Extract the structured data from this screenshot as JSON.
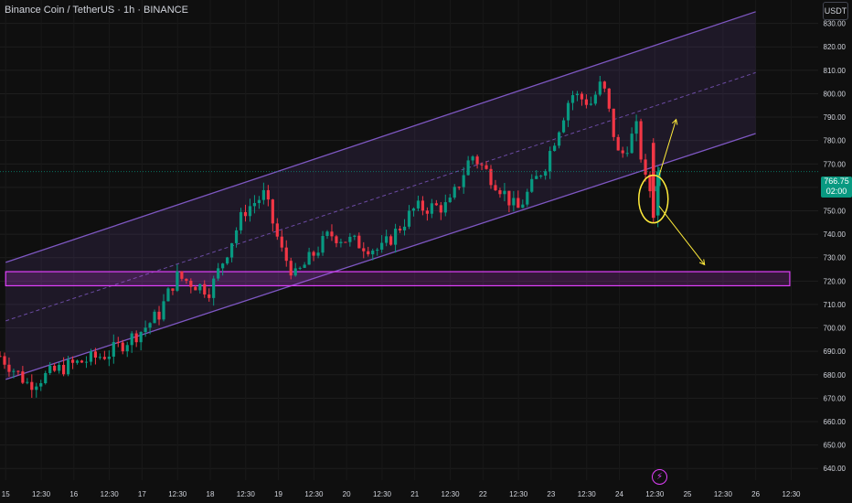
{
  "header": {
    "title": "Binance Coin / TetherUS · 1h · BINANCE",
    "currency": "USDT"
  },
  "last_price": {
    "value": "766.75",
    "countdown": "02:00",
    "color": "#089981"
  },
  "colors": {
    "background": "#0f0f0f",
    "up": "#089981",
    "down": "#f23645",
    "channel": "#7e57c2",
    "zone": "#e040fb",
    "annotation": "#ffeb3b",
    "axis_text": "#d1d4dc"
  },
  "indicator_icon": "lightning-icon",
  "chart_data": {
    "type": "candlestick",
    "symbol": "BNBUSDT",
    "timeframe": "1h",
    "ylim": [
      635,
      840
    ],
    "y_ticks": [
      640,
      650,
      660,
      670,
      680,
      690,
      700,
      710,
      720,
      730,
      740,
      750,
      760,
      770,
      780,
      790,
      800,
      810,
      820,
      830
    ],
    "y_tick_labels": [
      "640.00",
      "650.00",
      "660.00",
      "670.00",
      "680.00",
      "690.00",
      "700.00",
      "710.00",
      "720.00",
      "730.00",
      "740.00",
      "750.00",
      "760.00",
      "770.00",
      "780.00",
      "790.00",
      "800.00",
      "810.00",
      "820.00",
      "830.00"
    ],
    "x_range": [
      "2025-06-14 22:00",
      "2025-06-26 22:00"
    ],
    "x_ticks": [
      "15",
      "12:30",
      "16",
      "12:30",
      "17",
      "12:30",
      "18",
      "12:30",
      "19",
      "12:30",
      "20",
      "12:30",
      "21",
      "12:30",
      "22",
      "12:30",
      "23",
      "12:30",
      "24",
      "12:30",
      "25",
      "12:30",
      "26",
      "12:30"
    ],
    "x_tick_times": [
      "2025-06-15 00:00",
      "2025-06-15 12:30",
      "2025-06-16 00:00",
      "2025-06-16 12:30",
      "2025-06-17 00:00",
      "2025-06-17 12:30",
      "2025-06-18 00:00",
      "2025-06-18 12:30",
      "2025-06-19 00:00",
      "2025-06-19 12:30",
      "2025-06-20 00:00",
      "2025-06-20 12:30",
      "2025-06-21 00:00",
      "2025-06-21 12:30",
      "2025-06-22 00:00",
      "2025-06-22 12:30",
      "2025-06-23 00:00",
      "2025-06-23 12:30",
      "2025-06-24 00:00",
      "2025-06-24 12:30",
      "2025-06-25 00:00",
      "2025-06-25 12:30",
      "2025-06-26 00:00",
      "2025-06-26 12:30"
    ],
    "last_price": 766.75,
    "price_path": [
      [
        "2025-06-14 22:00",
        688
      ],
      [
        "2025-06-15 08:00",
        676
      ],
      [
        "2025-06-15 20:00",
        683
      ],
      [
        "2025-06-16 12:00",
        689
      ],
      [
        "2025-06-17 00:00",
        699
      ],
      [
        "2025-06-17 06:00",
        706
      ],
      [
        "2025-06-17 12:00",
        722
      ],
      [
        "2025-06-18 00:00",
        716
      ],
      [
        "2025-06-18 12:00",
        750
      ],
      [
        "2025-06-18 19:00",
        757
      ],
      [
        "2025-06-19 01:00",
        733
      ],
      [
        "2025-06-19 06:00",
        722
      ],
      [
        "2025-06-19 18:00",
        740
      ],
      [
        "2025-06-20 12:00",
        733
      ],
      [
        "2025-06-21 00:00",
        751
      ],
      [
        "2025-06-21 12:00",
        752
      ],
      [
        "2025-06-21 20:00",
        774
      ],
      [
        "2025-06-22 06:00",
        760
      ],
      [
        "2025-06-22 12:00",
        750
      ],
      [
        "2025-06-22 22:00",
        770
      ],
      [
        "2025-06-23 07:00",
        800
      ],
      [
        "2025-06-23 14:00",
        796
      ],
      [
        "2025-06-23 18:00",
        805
      ],
      [
        "2025-06-24 00:00",
        772
      ],
      [
        "2025-06-24 06:00",
        785
      ],
      [
        "2025-06-24 10:00",
        757
      ],
      [
        "2025-06-24 14:00",
        766.75
      ]
    ],
    "channel": {
      "lower": [
        [
          "2025-06-15 00:00",
          678
        ],
        [
          "2025-06-26 00:00",
          783
        ]
      ],
      "upper": [
        [
          "2025-06-15 00:00",
          728
        ],
        [
          "2025-06-26 00:00",
          835
        ]
      ],
      "mid": [
        [
          "2025-06-15 00:00",
          703
        ],
        [
          "2025-06-26 00:00",
          809
        ]
      ]
    },
    "zone": {
      "from": "2025-06-15 00:00",
      "to": "2025-06-26 12:00",
      "low": 718,
      "high": 724
    },
    "annotations": {
      "ellipse": {
        "time": "2025-06-24 12:00",
        "price": 755
      },
      "arrow_up": {
        "from": [
          "2025-06-24 14:00",
          765
        ],
        "to": [
          "2025-06-24 20:00",
          789
        ]
      },
      "arrow_down": {
        "from": [
          "2025-06-24 14:00",
          752
        ],
        "to": [
          "2025-06-25 06:00",
          727
        ]
      }
    }
  }
}
